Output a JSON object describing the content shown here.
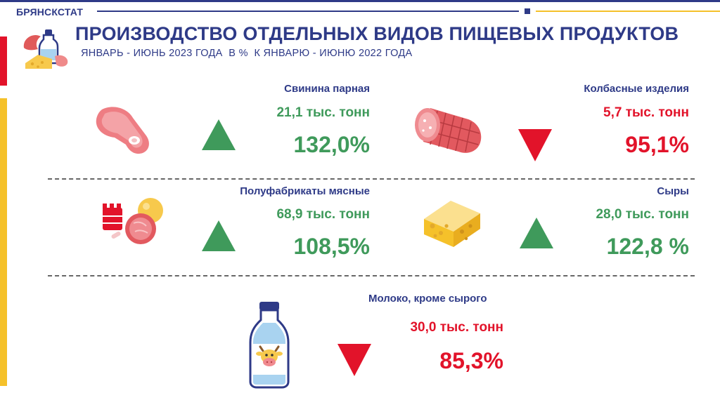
{
  "header": {
    "org": "БРЯНСКСТАТ",
    "title": "ПРОИЗВОДСТВО ОТДЕЛЬНЫХ ВИДОВ ПИЩЕВЫХ ПРОДУКТОВ",
    "subtitle": "ЯНВАРЬ - ИЮНЬ 2023 ГОДА  В %  К ЯНВАРЮ - ИЮНЮ 2022 ГОДА"
  },
  "colors": {
    "accent_blue": "#2e3a87",
    "up_green": "#3f9a5b",
    "down_red": "#e2132a",
    "side_yellow": "#f5c12a"
  },
  "products": [
    {
      "name": "Свинина парная",
      "volume": "21,1 тыс. тонн",
      "percent": "132,0%",
      "trend": "up",
      "icon": "pork-meat-icon"
    },
    {
      "name": "Колбасные изделия",
      "volume": "5,7 тыс. тонн",
      "percent": "95,1%",
      "trend": "down",
      "icon": "sausage-icon"
    },
    {
      "name": "Полуфабрикаты мясные",
      "volume": "68,9 тыс. тонн",
      "percent": "108,5%",
      "trend": "up",
      "icon": "semi-finished-meat-icon"
    },
    {
      "name": "Сыры",
      "volume": "28,0 тыс. тонн",
      "percent": "122,8 %",
      "trend": "up",
      "icon": "cheese-icon"
    },
    {
      "name": "Молоко, кроме сырого",
      "volume": "30,0 тыс. тонн",
      "percent": "85,3%",
      "trend": "down",
      "icon": "milk-bottle-icon"
    }
  ]
}
